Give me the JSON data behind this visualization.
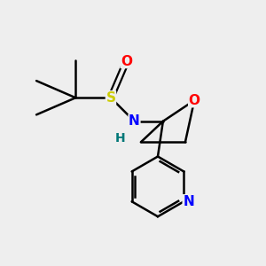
{
  "background_color": "#eeeeee",
  "figsize": [
    3.0,
    3.0
  ],
  "dpi": 100,
  "colors": {
    "S": "#cccc00",
    "O_sulfinyl": "#ff0000",
    "N": "#0000ff",
    "H": "#007777",
    "O_oxetane": "#ff0000",
    "py_N": "#0000ff",
    "bond": "#000000"
  }
}
